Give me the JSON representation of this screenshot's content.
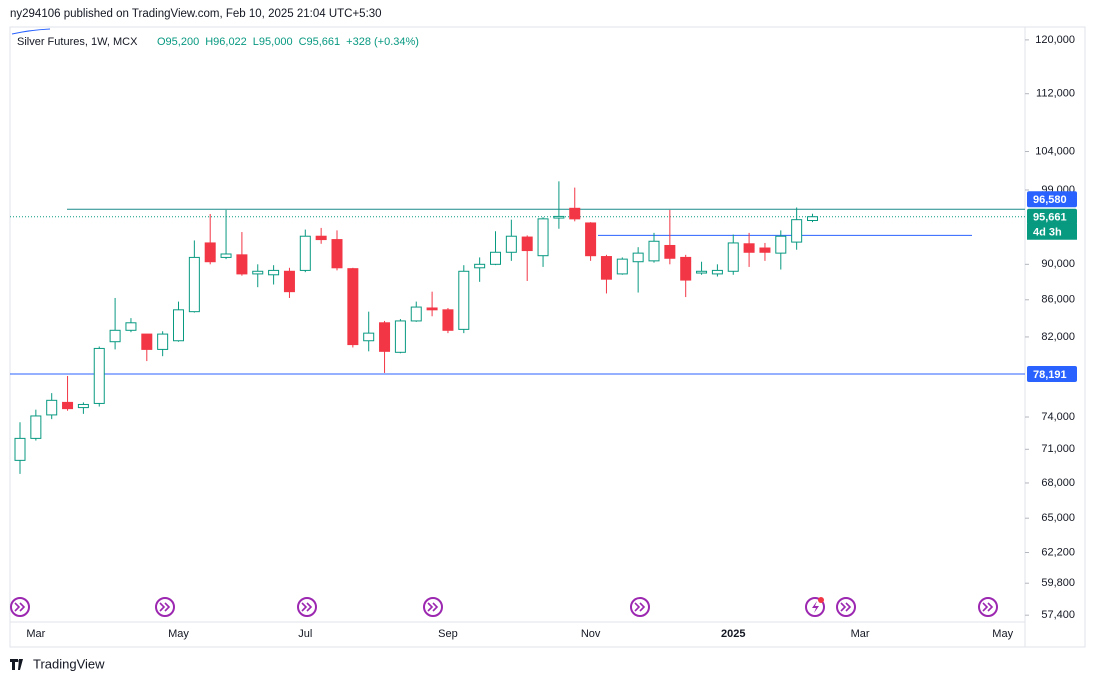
{
  "header": {
    "publisher": "ny294106 published on TradingView.com, Feb 10, 2025 21:04 UTC+5:30"
  },
  "footer": {
    "brand": "TradingView"
  },
  "chart_data": {
    "type": "candlestick",
    "title": "Silver Futures, 1W, MCX",
    "ohlc_legend": [
      "O95,200",
      "H96,022",
      "L95,000",
      "C95,661",
      "+328 (+0.34%)"
    ],
    "categories": [
      null,
      "Mar",
      null,
      null,
      null,
      null,
      null,
      null,
      null,
      null,
      "May",
      null,
      null,
      null,
      null,
      null,
      null,
      null,
      "Jul",
      null,
      null,
      null,
      null,
      null,
      null,
      null,
      null,
      "Sep",
      null,
      null,
      null,
      null,
      null,
      null,
      null,
      null,
      "Nov",
      null,
      null,
      null,
      null,
      null,
      null,
      null,
      null,
      "2025",
      null,
      null,
      null,
      null,
      null,
      null,
      null,
      "Mar",
      null,
      null,
      null,
      null,
      null,
      null,
      null,
      null,
      "May"
    ],
    "open": [
      70000,
      72000,
      74200,
      75400,
      74900,
      75300,
      81500,
      82700,
      82300,
      80700,
      81600,
      84700,
      92500,
      90800,
      91100,
      88900,
      88800,
      89200,
      89300,
      93300,
      92900,
      89500,
      81600,
      83500,
      80400,
      83700,
      85100,
      84900,
      82800,
      89600,
      90000,
      91400,
      93200,
      91000,
      95500,
      96700,
      94900,
      90900,
      88900,
      90300,
      90400,
      92200,
      90800,
      89000,
      88900,
      89200,
      92400,
      91900,
      91300,
      92600,
      95200,
      null,
      null,
      null,
      null,
      null,
      null,
      null,
      null,
      null,
      null,
      null,
      null
    ],
    "high": [
      73500,
      74700,
      76300,
      78000,
      75400,
      81000,
      86200,
      84000,
      82300,
      82600,
      85800,
      92800,
      96000,
      96500,
      93800,
      90000,
      89900,
      89600,
      94100,
      94300,
      94000,
      89600,
      84700,
      83700,
      83900,
      85800,
      86900,
      85100,
      89900,
      90800,
      93900,
      95300,
      93400,
      95600,
      100100,
      99300,
      95000,
      91100,
      90800,
      92000,
      93700,
      96500,
      91100,
      90300,
      90000,
      93500,
      93700,
      92500,
      94000,
      96800,
      96022,
      null,
      null,
      null,
      null,
      null,
      null,
      null,
      null,
      null,
      null,
      null,
      null
    ],
    "low": [
      68800,
      71800,
      73800,
      74600,
      74300,
      75000,
      80700,
      82500,
      79500,
      80000,
      81500,
      84600,
      90000,
      90600,
      88700,
      87400,
      87700,
      86200,
      89100,
      92400,
      89300,
      80900,
      80500,
      78300,
      80300,
      83600,
      84200,
      82400,
      82400,
      88000,
      89900,
      90400,
      88100,
      89700,
      94200,
      95100,
      90400,
      86700,
      88800,
      86800,
      90200,
      90000,
      86300,
      88800,
      88600,
      88800,
      89700,
      90400,
      89400,
      91700,
      95000,
      null,
      null,
      null,
      null,
      null,
      null,
      null,
      null,
      null,
      null,
      null,
      null
    ],
    "close": [
      72000,
      74100,
      75600,
      74800,
      75200,
      80800,
      82700,
      83500,
      80700,
      82300,
      84900,
      90800,
      90300,
      91200,
      88900,
      89200,
      89300,
      86900,
      93300,
      92900,
      89600,
      81200,
      82400,
      80500,
      83700,
      85200,
      84900,
      82700,
      89200,
      90000,
      91400,
      93300,
      91600,
      95400,
      95700,
      95400,
      91000,
      88300,
      90600,
      91300,
      92700,
      90700,
      88200,
      89200,
      89300,
      92500,
      91400,
      91400,
      93300,
      95300,
      95661,
      null,
      null,
      null,
      null,
      null,
      null,
      null,
      null,
      null,
      null,
      null,
      null
    ],
    "up_color": "#089981",
    "down_color": "#f23645",
    "log_scale": true,
    "ylim": [
      56900,
      122000
    ],
    "yticks": [
      {
        "value": 57400,
        "label": "57,400"
      },
      {
        "value": 59800,
        "label": "59,800"
      },
      {
        "value": 62200,
        "label": "62,200"
      },
      {
        "value": 65000,
        "label": "65,000"
      },
      {
        "value": 68000,
        "label": "68,000"
      },
      {
        "value": 71000,
        "label": "71,000"
      },
      {
        "value": 74000,
        "label": "74,000"
      },
      {
        "value": 82000,
        "label": "82,000"
      },
      {
        "value": 86000,
        "label": "86,000"
      },
      {
        "value": 90000,
        "label": "90,000"
      },
      {
        "value": 99000,
        "label": "99,000"
      },
      {
        "value": 104000,
        "label": "104,000"
      },
      {
        "value": 112000,
        "label": "112,000"
      },
      {
        "value": 120000,
        "label": "120,000"
      }
    ],
    "levels": [
      {
        "value": 96580,
        "label": "96,580",
        "line_color": "#1b8a8a",
        "badge_color": "#2962ff"
      },
      {
        "value": 78191,
        "label": "78,191",
        "line_color": "#2962ff",
        "badge_color": "#2962ff"
      }
    ],
    "ray_value": 93400,
    "ray_color": "#2962ff",
    "last_price": {
      "value": 95661,
      "label": "95,661",
      "countdown": "4d 3h",
      "color": "#089981"
    }
  }
}
